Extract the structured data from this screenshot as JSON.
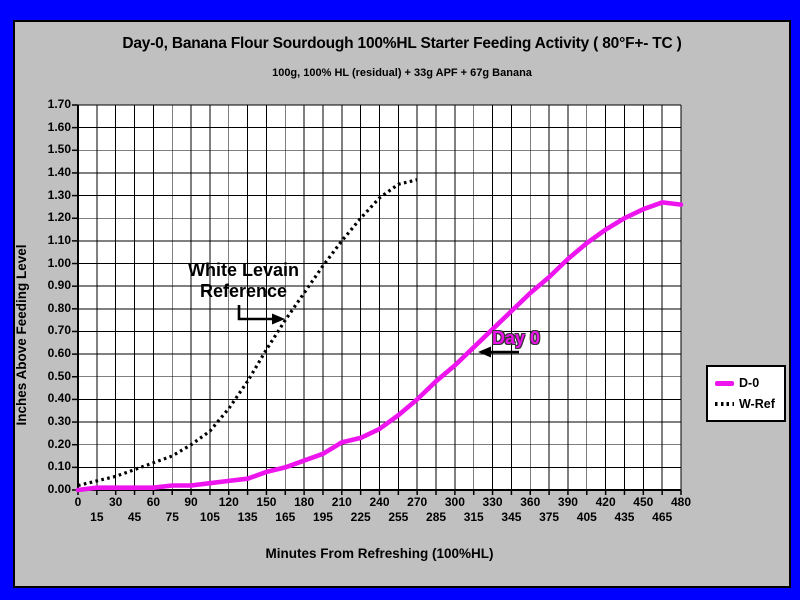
{
  "slide": {
    "background_color": "#0000FF"
  },
  "chart": {
    "title": "Day-0, Banana Flour Sourdough 100%HL Starter Feeding Activity ( 80°F+- TC )",
    "subtitle": "100g, 100% HL (residual) + 33g APF + 67g Banana",
    "x_axis_title": "Minutes From Refreshing (100%HL)",
    "y_axis_title": "Inches Above Feeding Level",
    "frame_bg": "#C0C0C0",
    "plot_bg": "#FFFFFF",
    "gridline_color": "#000000"
  },
  "legend": {
    "items": [
      {
        "label": "D-0",
        "color": "#EE14EE",
        "style": "solid"
      },
      {
        "label": "W-Ref",
        "color": "#000000",
        "style": "dotted"
      }
    ]
  },
  "annotations": [
    {
      "name": "white-levain-reference",
      "line1": "White Levain",
      "line2": "Reference",
      "color": "#000000"
    },
    {
      "name": "day-0",
      "line1": "Day 0",
      "color": "#EE14EE"
    }
  ],
  "chart_data": {
    "type": "line",
    "title": "Day-0, Banana Flour Sourdough 100%HL Starter Feeding Activity ( 80°F+- TC )",
    "subtitle": "100g, 100% HL (residual) + 33g APF + 67g Banana",
    "xlabel": "Minutes From Refreshing (100%HL)",
    "ylabel": "Inches Above Feeding Level",
    "xlim": [
      0,
      480
    ],
    "ylim": [
      0,
      1.7
    ],
    "grid": true,
    "legend_position": "right",
    "x_tick_rows": [
      [
        0,
        30,
        60,
        90,
        120,
        150,
        180,
        210,
        240,
        270,
        300,
        330,
        360,
        390,
        420,
        450,
        480
      ],
      [
        15,
        45,
        75,
        105,
        135,
        165,
        195,
        225,
        255,
        285,
        315,
        345,
        375,
        405,
        435,
        465
      ]
    ],
    "y_ticks": [
      "1.70",
      "1.60",
      "1.50",
      "1.40",
      "1.30",
      "1.20",
      "1.10",
      "1.00",
      "0.90",
      "0.80",
      "0.70",
      "0.60",
      "0.50",
      "0.40",
      "0.30",
      "0.20",
      "0.10",
      "0.00"
    ],
    "series": [
      {
        "name": "D-0",
        "color": "#EE14EE",
        "style": "solid",
        "x": [
          0,
          15,
          30,
          45,
          60,
          75,
          90,
          105,
          120,
          135,
          150,
          165,
          180,
          195,
          210,
          225,
          240,
          255,
          270,
          285,
          300,
          315,
          330,
          345,
          360,
          375,
          390,
          405,
          420,
          435,
          450,
          465,
          480
        ],
        "values": [
          0.0,
          0.01,
          0.01,
          0.01,
          0.01,
          0.02,
          0.02,
          0.03,
          0.04,
          0.05,
          0.08,
          0.1,
          0.13,
          0.16,
          0.21,
          0.23,
          0.27,
          0.33,
          0.4,
          0.48,
          0.55,
          0.63,
          0.71,
          0.79,
          0.87,
          0.94,
          1.02,
          1.09,
          1.15,
          1.2,
          1.24,
          1.27,
          1.26
        ]
      },
      {
        "name": "W-Ref",
        "color": "#000000",
        "style": "dotted",
        "x": [
          0,
          15,
          30,
          45,
          60,
          75,
          90,
          105,
          120,
          135,
          150,
          165,
          180,
          195,
          210,
          225,
          240,
          255,
          270
        ],
        "values": [
          0.02,
          0.04,
          0.06,
          0.09,
          0.12,
          0.15,
          0.2,
          0.26,
          0.36,
          0.48,
          0.62,
          0.75,
          0.87,
          0.99,
          1.1,
          1.2,
          1.29,
          1.35,
          1.37
        ]
      }
    ]
  }
}
